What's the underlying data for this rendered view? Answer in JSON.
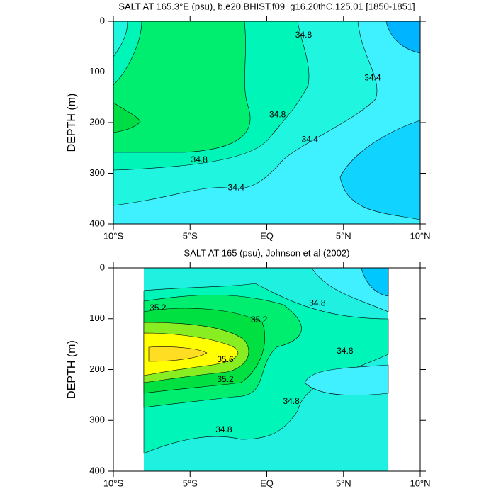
{
  "chart_data": [
    {
      "type": "contour",
      "title": "SALT AT 165.3°E (psu), b.e20.BHIST.f09_g16.20thC.125.01 [1850-1851]",
      "y_label": "DEPTH (m)",
      "xlim": [
        -10,
        10
      ],
      "xticks": [
        {
          "value": -10,
          "label": "10°S"
        },
        {
          "value": -5,
          "label": "5°S"
        },
        {
          "value": 0,
          "label": "EQ"
        },
        {
          "value": 5,
          "label": "5°N"
        },
        {
          "value": 10,
          "label": "10°N"
        }
      ],
      "ylim": [
        400,
        0
      ],
      "yticks": [
        0,
        100,
        200,
        300,
        400
      ],
      "contour_labels": [
        {
          "value": 34.8,
          "x": 2.4,
          "y": 28
        },
        {
          "value": 34.4,
          "x": 6.9,
          "y": 112
        },
        {
          "value": 34.8,
          "x": 0.7,
          "y": 185
        },
        {
          "value": 34.4,
          "x": 2.8,
          "y": 234
        },
        {
          "value": 34.8,
          "x": -4.4,
          "y": 274
        },
        {
          "value": 34.4,
          "x": -2.0,
          "y": 329
        }
      ]
    },
    {
      "type": "contour",
      "title": "SALT AT 165 (psu), Johnson et al (2002)",
      "y_label": "DEPTH (m)",
      "xlim": [
        -10,
        10
      ],
      "xticks": [
        {
          "value": -10,
          "label": "10°S"
        },
        {
          "value": -5,
          "label": "5°S"
        },
        {
          "value": 0,
          "label": "EQ"
        },
        {
          "value": 5,
          "label": "5°N"
        },
        {
          "value": 10,
          "label": "10°N"
        }
      ],
      "ylim": [
        400,
        0
      ],
      "yticks": [
        0,
        100,
        200,
        300,
        400
      ],
      "contour_labels": [
        {
          "value": 34.8,
          "x": 3.3,
          "y": 70
        },
        {
          "value": 35.2,
          "x": -7.1,
          "y": 79
        },
        {
          "value": 35.2,
          "x": -0.5,
          "y": 103
        },
        {
          "value": 35.6,
          "x": -2.7,
          "y": 181
        },
        {
          "value": 34.8,
          "x": 5.1,
          "y": 164
        },
        {
          "value": 35.2,
          "x": -2.7,
          "y": 220
        },
        {
          "value": 34.8,
          "x": 1.6,
          "y": 263
        },
        {
          "value": 34.8,
          "x": -2.8,
          "y": 319
        }
      ]
    }
  ]
}
